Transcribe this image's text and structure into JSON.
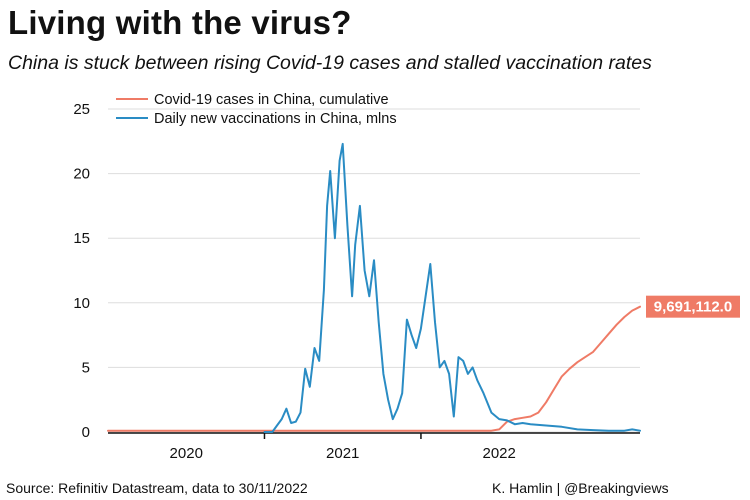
{
  "title": "Living with the virus?",
  "subtitle": "China is stuck between rising Covid-19 cases and stalled vaccination rates",
  "source": "Source: Refinitiv Datastream, data to 30/11/2022",
  "credit": "K. Hamlin | @Breakingviews",
  "colors": {
    "cases": "#ef7b66",
    "vaccinations": "#2a8cc4",
    "label_bg": "#ef7b66",
    "grid": "#dddddd"
  },
  "chart_data": {
    "type": "line",
    "title": "Living with the virus?",
    "subtitle": "China is stuck between rising Covid-19 cases and stalled vaccination rates",
    "xlabel": "",
    "ylabel": "",
    "ylim": [
      0,
      25
    ],
    "xlim": [
      2019.5,
      2022.9
    ],
    "yticks": [
      "0",
      "5",
      "10",
      "15",
      "20",
      "25"
    ],
    "xtick_labels": [
      "2020",
      "2021",
      "2022"
    ],
    "grid": true,
    "legend_position": "top-left",
    "end_label": "9,691,112.0",
    "series": [
      {
        "name": "Covid-19 cases in China, cumulative",
        "key": "cases",
        "x": [
          2019.5,
          2020.0,
          2020.5,
          2021.0,
          2021.5,
          2021.95,
          2022.0,
          2022.05,
          2022.1,
          2022.15,
          2022.2,
          2022.25,
          2022.3,
          2022.35,
          2022.4,
          2022.45,
          2022.5,
          2022.55,
          2022.6,
          2022.65,
          2022.7,
          2022.75,
          2022.8,
          2022.85,
          2022.9
        ],
        "values": [
          0.1,
          0.1,
          0.1,
          0.1,
          0.1,
          0.1,
          0.2,
          0.8,
          1.0,
          1.1,
          1.2,
          1.5,
          2.3,
          3.3,
          4.3,
          4.9,
          5.4,
          5.8,
          6.2,
          6.9,
          7.6,
          8.3,
          8.9,
          9.4,
          9.7
        ]
      },
      {
        "name": "Daily new vaccinations in China, mlns",
        "key": "vaccinations",
        "x": [
          2020.5,
          2020.55,
          2020.58,
          2020.61,
          2020.64,
          2020.67,
          2020.7,
          2020.73,
          2020.76,
          2020.79,
          2020.82,
          2020.85,
          2020.88,
          2020.9,
          2020.92,
          2020.95,
          2020.98,
          2021.0,
          2021.03,
          2021.06,
          2021.08,
          2021.11,
          2021.14,
          2021.17,
          2021.2,
          2021.23,
          2021.26,
          2021.29,
          2021.32,
          2021.35,
          2021.38,
          2021.41,
          2021.44,
          2021.47,
          2021.5,
          2021.53,
          2021.56,
          2021.59,
          2021.62,
          2021.65,
          2021.68,
          2021.71,
          2021.74,
          2021.77,
          2021.8,
          2021.83,
          2021.86,
          2021.9,
          2021.95,
          2022.0,
          2022.05,
          2022.1,
          2022.15,
          2022.2,
          2022.3,
          2022.4,
          2022.5,
          2022.6,
          2022.7,
          2022.8,
          2022.85,
          2022.9
        ],
        "values": [
          0,
          0,
          0.5,
          1.0,
          1.8,
          0.7,
          0.8,
          1.5,
          4.9,
          3.5,
          6.5,
          5.5,
          11.0,
          17.5,
          20.2,
          15.0,
          21.0,
          22.3,
          16.0,
          10.5,
          14.5,
          17.5,
          12.5,
          10.5,
          13.3,
          8.5,
          4.5,
          2.5,
          1.0,
          1.8,
          3.0,
          8.7,
          7.5,
          6.5,
          8.0,
          10.5,
          13.0,
          8.5,
          5.0,
          5.5,
          4.5,
          1.2,
          5.8,
          5.5,
          4.5,
          5.0,
          4.0,
          3.0,
          1.5,
          1.0,
          0.9,
          0.6,
          0.7,
          0.6,
          0.5,
          0.4,
          0.2,
          0.15,
          0.1,
          0.1,
          0.2,
          0.1
        ]
      }
    ]
  }
}
